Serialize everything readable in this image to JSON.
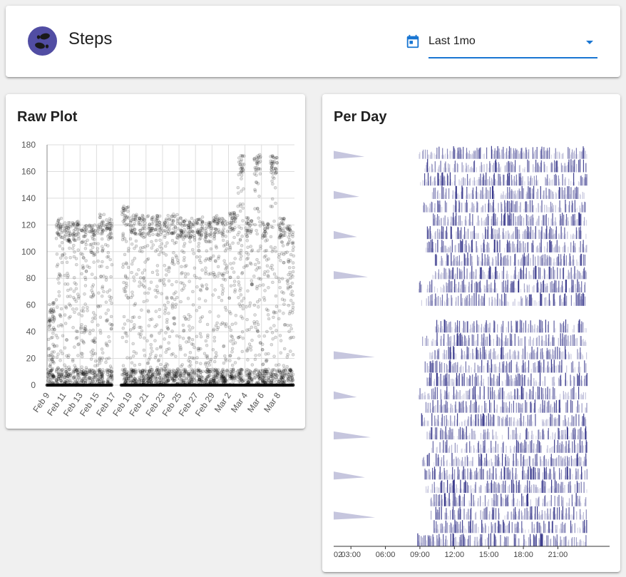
{
  "header": {
    "title": "Steps",
    "avatar_icon": "footprints-icon",
    "range_icon": "calendar-icon",
    "range_value": "Last 1mo",
    "accent_color": "#1976d2",
    "avatar_color": "#514da3"
  },
  "raw_plot": {
    "title": "Raw Plot",
    "chart_data": {
      "type": "scatter",
      "title": "Raw Plot",
      "xlabel": "",
      "ylabel": "",
      "ylim": [
        0,
        180
      ],
      "y_ticks": [
        0,
        20,
        40,
        60,
        80,
        100,
        120,
        140,
        160,
        180
      ],
      "x_tick_labels": [
        "Feb 9",
        "Feb 11",
        "Feb 13",
        "Feb 15",
        "Feb 17",
        "Feb 19",
        "Feb 21",
        "Feb 23",
        "Feb 25",
        "Feb 27",
        "Feb 29",
        "Mar 2",
        "Mar 4",
        "Mar 6",
        "Mar 8"
      ],
      "grid": true,
      "point_color": "#000000",
      "daily_typical_max": [
        62,
        125,
        122,
        123,
        120,
        120,
        128,
        125,
        0,
        134,
        128,
        128,
        127,
        127,
        128,
        128,
        126,
        125,
        126,
        122,
        128,
        125,
        130,
        172,
        126,
        173,
        122,
        173,
        125,
        120
      ]
    }
  },
  "per_day": {
    "title": "Per Day",
    "chart_data": {
      "type": "heatmap",
      "title": "Per Day",
      "x_tick_labels": [
        "03:00",
        "06:00",
        "09:00",
        "12:00",
        "15:00",
        "18:00",
        "21:00"
      ],
      "x_partial_label": "02",
      "row_count": 30,
      "active_hours": [
        9.5,
        23.5
      ],
      "color": "#1a1a7a"
    }
  }
}
